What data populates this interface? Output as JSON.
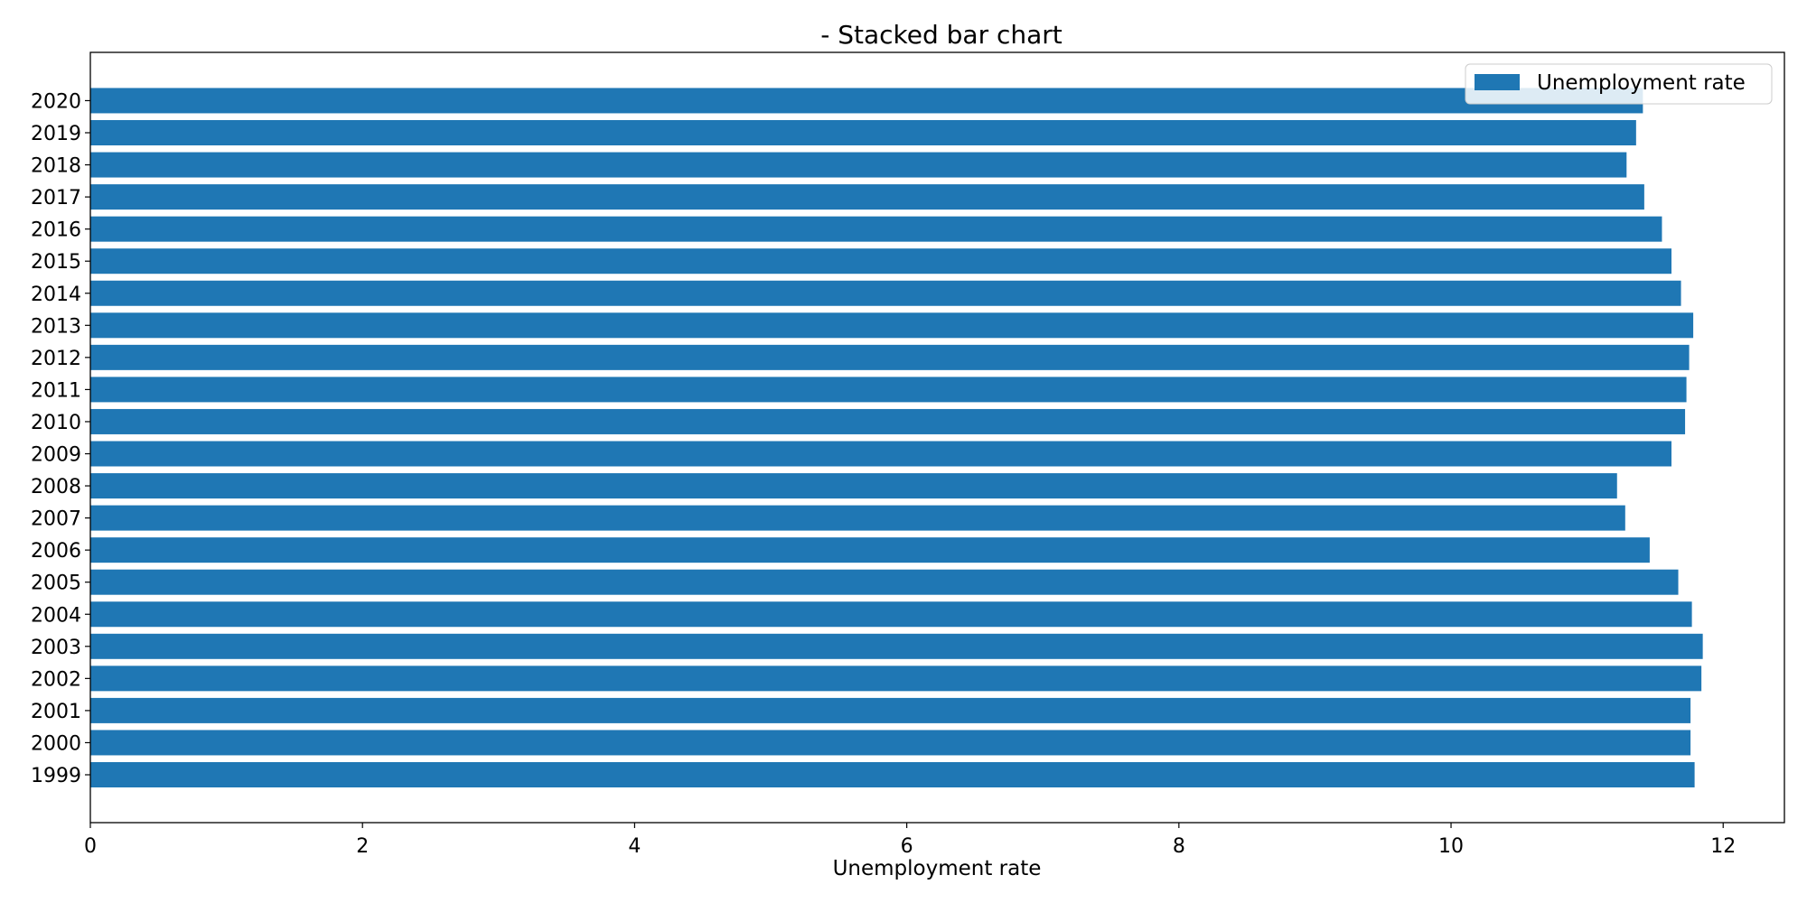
{
  "chart_data": {
    "type": "bar",
    "orientation": "horizontal",
    "title": "- Stacked bar chart",
    "xlabel": "Unemployment rate",
    "ylabel": "",
    "xlim": [
      0,
      12.45
    ],
    "xticks": [
      0,
      2,
      4,
      6,
      8,
      10,
      12
    ],
    "categories": [
      "1999",
      "2000",
      "2001",
      "2002",
      "2003",
      "2004",
      "2005",
      "2006",
      "2007",
      "2008",
      "2009",
      "2010",
      "2011",
      "2012",
      "2013",
      "2014",
      "2015",
      "2016",
      "2017",
      "2018",
      "2019",
      "2020"
    ],
    "series": [
      {
        "name": "Unemployment rate",
        "color": "#1f77b4",
        "values": [
          11.79,
          11.76,
          11.76,
          11.84,
          11.85,
          11.77,
          11.67,
          11.46,
          11.28,
          11.22,
          11.62,
          11.72,
          11.73,
          11.75,
          11.78,
          11.69,
          11.62,
          11.55,
          11.42,
          11.29,
          11.36,
          11.41
        ]
      }
    ],
    "legend": "top-right",
    "grid": false
  }
}
